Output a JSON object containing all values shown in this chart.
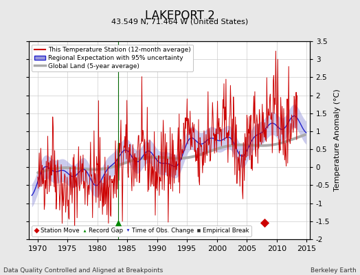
{
  "title": "LAKEPORT 2",
  "subtitle": "43.549 N, 71.464 W (United States)",
  "xlabel_bottom": "Data Quality Controlled and Aligned at Breakpoints",
  "xlabel_right": "Berkeley Earth",
  "ylabel": "Temperature Anomaly (°C)",
  "xlim": [
    1968.5,
    2015.5
  ],
  "ylim": [
    -2.0,
    3.5
  ],
  "yticks": [
    -2,
    -1.5,
    -1,
    -0.5,
    0,
    0.5,
    1,
    1.5,
    2,
    2.5,
    3,
    3.5
  ],
  "xticks": [
    1970,
    1975,
    1980,
    1985,
    1990,
    1995,
    2000,
    2005,
    2010,
    2015
  ],
  "bg_color": "#e8e8e8",
  "plot_bg_color": "#ffffff",
  "grid_color": "#cccccc",
  "station_line_color": "#cc0000",
  "regional_line_color": "#2222cc",
  "regional_fill_color": "#9999dd",
  "global_line_color": "#aaaaaa",
  "legend_labels": [
    "This Temperature Station (12-month average)",
    "Regional Expectation with 95% uncertainty",
    "Global Land (5-year average)"
  ],
  "marker_station_move": {
    "year": 2008.0,
    "value": -1.55,
    "color": "#cc0000",
    "marker": "D"
  },
  "marker_record_gap": {
    "year": 1983.5,
    "value": -1.55,
    "color": "#008800",
    "marker": "^"
  },
  "vertical_line_year": 1983.5,
  "vertical_line_color": "#006600"
}
